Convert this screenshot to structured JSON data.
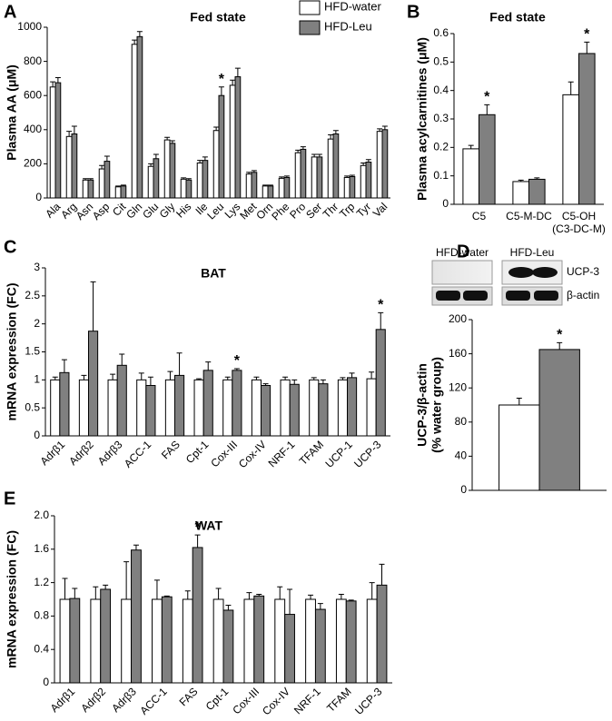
{
  "chart_data": [
    {
      "type": "bar",
      "panel": "A",
      "title": "Fed state",
      "ylabel": "Plasma AA (μM)",
      "categories": [
        "Ala",
        "Arg",
        "Asn",
        "Asp",
        "Cit",
        "Gln",
        "Glu",
        "Gly",
        "His",
        "Ile",
        "Leu",
        "Lys",
        "Met",
        "Orn",
        "Phe",
        "Pro",
        "Ser",
        "Thr",
        "Trp",
        "Tyr",
        "Val"
      ],
      "series": [
        {
          "name": "HFD-water",
          "color": "#ffffff",
          "values": [
            650,
            360,
            105,
            170,
            65,
            900,
            185,
            340,
            110,
            205,
            395,
            660,
            140,
            70,
            115,
            265,
            240,
            345,
            120,
            190,
            390
          ],
          "errors": [
            30,
            30,
            8,
            20,
            5,
            25,
            15,
            15,
            8,
            15,
            20,
            30,
            10,
            5,
            8,
            15,
            15,
            25,
            8,
            15,
            15
          ]
        },
        {
          "name": "HFD-Leu",
          "color": "#808080",
          "values": [
            675,
            375,
            105,
            215,
            70,
            945,
            230,
            320,
            105,
            220,
            600,
            710,
            150,
            70,
            120,
            285,
            240,
            375,
            125,
            210,
            400
          ],
          "errors": [
            30,
            45,
            8,
            30,
            5,
            30,
            25,
            15,
            8,
            20,
            50,
            50,
            10,
            5,
            8,
            15,
            15,
            20,
            8,
            15,
            20
          ],
          "annotations": [
            null,
            null,
            null,
            null,
            null,
            null,
            null,
            null,
            null,
            null,
            "*",
            null,
            null,
            null,
            null,
            null,
            null,
            null,
            null,
            null,
            null
          ]
        }
      ],
      "ylim": [
        0,
        1000
      ],
      "yticks": [
        0,
        200,
        400,
        600,
        800,
        1000
      ],
      "legend": "upper right"
    },
    {
      "type": "bar",
      "panel": "B",
      "title": "Fed state",
      "ylabel": "Plasma acylcarnitines (μM)",
      "categories": [
        "C5",
        "C5-M-DC",
        "C5-OH"
      ],
      "category_sublabels": [
        null,
        null,
        "(C3-DC-M)"
      ],
      "series": [
        {
          "color": "#ffffff",
          "values": [
            0.195,
            0.08,
            0.385
          ],
          "errors": [
            0.012,
            0.005,
            0.045
          ]
        },
        {
          "color": "#808080",
          "values": [
            0.315,
            0.088,
            0.53
          ],
          "errors": [
            0.035,
            0.005,
            0.04
          ],
          "annotations": [
            "*",
            null,
            "*"
          ]
        }
      ],
      "ylim": [
        0,
        0.6
      ],
      "yticks": [
        0,
        0.1,
        0.2,
        0.3,
        0.4,
        0.5,
        0.6
      ]
    },
    {
      "type": "bar",
      "panel": "C",
      "title": "BAT",
      "ylabel": "mRNA expression (FC)",
      "categories": [
        "Adrβ1",
        "Adrβ2",
        "Adrβ3",
        "ACC-1",
        "FAS",
        "Cpt-1",
        "Cox-III",
        "Cox-IV",
        "NRF-1",
        "TFAM",
        "UCP-1",
        "UCP-3"
      ],
      "series": [
        {
          "color": "#ffffff",
          "values": [
            1,
            1,
            1,
            1,
            1,
            1,
            1,
            1,
            1,
            1,
            1,
            1.02
          ],
          "errors": [
            0.05,
            0.08,
            0.1,
            0.12,
            0.15,
            0.02,
            0.05,
            0.05,
            0.05,
            0.04,
            0.04,
            0.12
          ]
        },
        {
          "color": "#808080",
          "values": [
            1.13,
            1.87,
            1.26,
            0.9,
            1.08,
            1.17,
            1.17,
            0.9,
            0.92,
            0.93,
            1.04,
            1.9
          ],
          "errors": [
            0.23,
            0.88,
            0.2,
            0.15,
            0.4,
            0.15,
            0.03,
            0.03,
            0.08,
            0.07,
            0.08,
            0.3
          ],
          "annotations": [
            null,
            null,
            null,
            null,
            null,
            null,
            "*",
            null,
            null,
            null,
            null,
            "*"
          ]
        }
      ],
      "ylim": [
        0,
        3
      ],
      "yticks": [
        0,
        0.5,
        1,
        1.5,
        2,
        2.5,
        3
      ]
    },
    {
      "type": "bar",
      "panel": "D",
      "ylabel": [
        "UCP-3/β-actin",
        "(% water group)"
      ],
      "blot": {
        "groups": [
          "HFD-water",
          "HFD-Leu"
        ],
        "bands": [
          "UCP-3",
          "β-actin"
        ]
      },
      "series": [
        {
          "color": "#ffffff",
          "values": [
            100
          ],
          "errors": [
            8
          ]
        },
        {
          "color": "#808080",
          "values": [
            165
          ],
          "errors": [
            8
          ],
          "annotations": [
            "*"
          ]
        }
      ],
      "ylim": [
        0,
        200
      ],
      "yticks": [
        0,
        40,
        80,
        120,
        160,
        200
      ]
    },
    {
      "type": "bar",
      "panel": "E",
      "title": "WAT",
      "ylabel": "mRNA expression (FC)",
      "categories": [
        "Adrβ1",
        "Adrβ2",
        "Adrβ3",
        "ACC-1",
        "FAS",
        "Cpt-1",
        "Cox-III",
        "Cox-IV",
        "NRF-1",
        "TFAM",
        "UCP-3"
      ],
      "series": [
        {
          "color": "#ffffff",
          "values": [
            1,
            1,
            1,
            1,
            1,
            1,
            1,
            1,
            1,
            1,
            1
          ],
          "errors": [
            0.25,
            0.15,
            0.45,
            0.23,
            0.1,
            0.13,
            0.08,
            0.15,
            0.05,
            0.06,
            0.2
          ]
        },
        {
          "color": "#808080",
          "values": [
            1.01,
            1.12,
            1.59,
            1.03,
            1.62,
            0.87,
            1.04,
            0.82,
            0.88,
            0.98,
            1.17
          ],
          "errors": [
            0.12,
            0.05,
            0.06,
            0.01,
            0.15,
            0.06,
            0.02,
            0.3,
            0.07,
            0.01,
            0.25
          ],
          "annotations": [
            null,
            null,
            null,
            null,
            "*",
            null,
            null,
            null,
            null,
            null,
            null
          ]
        }
      ],
      "ylim": [
        0,
        2
      ],
      "yticks": [
        0,
        0.4,
        0.8,
        1.2,
        1.6,
        {
          "value": 2,
          "label": "2.0"
        }
      ]
    }
  ]
}
